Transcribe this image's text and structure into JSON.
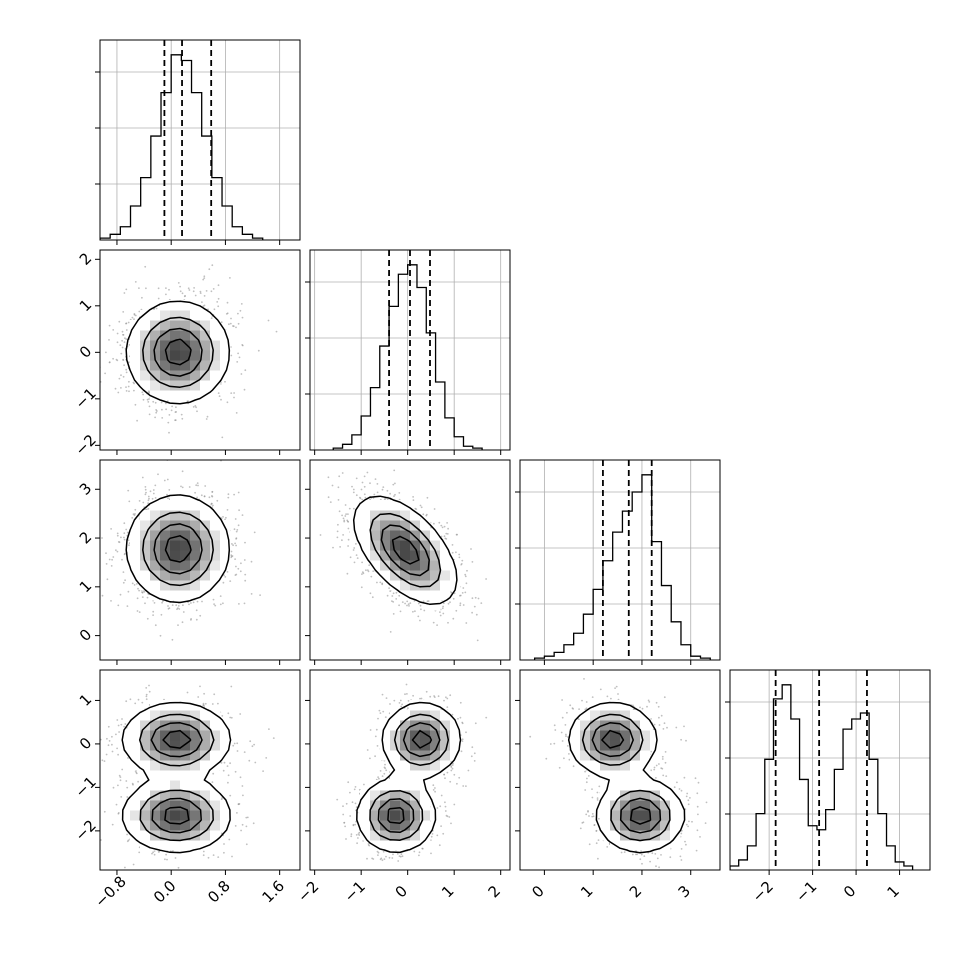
{
  "chart_data": {
    "type": "corner",
    "description_of_layout": "lower-triangular 4x4 matrix: 1-D histograms on the diagonal with dashed quantile lines, 2-D density/contour panels below",
    "grid": true,
    "parameters": [
      {
        "ticks": [
          -0.8,
          0.0,
          0.8,
          1.6
        ],
        "tick_labels": [
          "−0.8",
          "0.0",
          "0.8",
          "1.6"
        ],
        "range": [
          -1.05,
          1.9
        ],
        "quantiles": [
          -0.1,
          0.16,
          0.59
        ],
        "hist": {
          "edges": [
            -1.05,
            -0.9,
            -0.75,
            -0.6,
            -0.45,
            -0.3,
            -0.15,
            0.0,
            0.15,
            0.3,
            0.45,
            0.6,
            0.75,
            0.9,
            1.05,
            1.2,
            1.35
          ],
          "counts": [
            0.01,
            0.03,
            0.07,
            0.18,
            0.33,
            0.55,
            0.78,
            0.98,
            0.95,
            0.78,
            0.55,
            0.33,
            0.18,
            0.07,
            0.03,
            0.01
          ]
        }
      },
      {
        "ticks": [
          -2,
          -1,
          0,
          1,
          2
        ],
        "tick_labels": [
          "−2",
          "−1",
          "0",
          "1",
          "2"
        ],
        "range": [
          -2.1,
          2.2
        ],
        "quantiles": [
          -0.4,
          0.05,
          0.48
        ],
        "hist": {
          "edges": [
            -1.6,
            -1.4,
            -1.2,
            -1.0,
            -0.8,
            -0.6,
            -0.4,
            -0.2,
            0.0,
            0.2,
            0.4,
            0.6,
            0.8,
            1.0,
            1.2,
            1.4,
            1.6
          ],
          "counts": [
            0.01,
            0.03,
            0.08,
            0.18,
            0.33,
            0.55,
            0.76,
            0.93,
            0.98,
            0.86,
            0.62,
            0.36,
            0.17,
            0.07,
            0.02,
            0.01
          ]
        }
      },
      {
        "ticks": [
          0,
          1,
          2,
          3
        ],
        "tick_labels": [
          "0",
          "1",
          "2",
          "3"
        ],
        "range": [
          -0.5,
          3.6
        ],
        "quantiles": [
          1.2,
          1.73,
          2.2
        ],
        "hist": {
          "edges": [
            -0.2,
            0.0,
            0.2,
            0.4,
            0.6,
            0.8,
            1.0,
            1.2,
            1.4,
            1.6,
            1.8,
            2.0,
            2.2,
            2.4,
            2.6,
            2.8,
            3.0,
            3.2,
            3.4
          ],
          "counts": [
            0.01,
            0.02,
            0.04,
            0.08,
            0.14,
            0.24,
            0.37,
            0.52,
            0.67,
            0.78,
            0.88,
            0.97,
            0.62,
            0.39,
            0.2,
            0.08,
            0.02,
            0.01
          ]
        }
      },
      {
        "ticks": [
          -2,
          -1,
          0,
          1
        ],
        "tick_labels": [
          "−2",
          "−1",
          "0",
          "1"
        ],
        "range": [
          -2.9,
          1.7
        ],
        "quantiles": [
          -1.85,
          -0.85,
          0.25
        ],
        "hist": {
          "edges": [
            -2.9,
            -2.7,
            -2.5,
            -2.3,
            -2.1,
            -1.9,
            -1.7,
            -1.5,
            -1.3,
            -1.1,
            -0.9,
            -0.7,
            -0.5,
            -0.3,
            -0.1,
            0.1,
            0.3,
            0.5,
            0.7,
            0.9,
            1.1,
            1.3
          ],
          "counts": [
            0.02,
            0.05,
            0.12,
            0.28,
            0.55,
            0.85,
            0.92,
            0.75,
            0.45,
            0.22,
            0.2,
            0.3,
            0.5,
            0.7,
            0.75,
            0.78,
            0.55,
            0.28,
            0.12,
            0.04,
            0.02
          ]
        }
      }
    ],
    "pairs": [
      {
        "row": 1,
        "col": 0,
        "center": [
          0.1,
          0.0
        ],
        "sd": [
          0.38,
          0.55
        ],
        "corr": 0.0,
        "modes": 1
      },
      {
        "row": 2,
        "col": 0,
        "center": [
          0.1,
          1.78
        ],
        "sd": [
          0.38,
          0.55
        ],
        "corr": 0.0,
        "modes": 1
      },
      {
        "row": 2,
        "col": 1,
        "center": [
          -0.05,
          1.75
        ],
        "sd": [
          0.55,
          0.55
        ],
        "corr": -0.55,
        "modes": 1
      },
      {
        "row": 3,
        "col": 0,
        "modes": 2,
        "components": [
          [
            0.08,
            0.1
          ],
          [
            0.08,
            -1.65
          ]
        ],
        "sd": [
          0.4,
          0.42
        ]
      },
      {
        "row": 3,
        "col": 1,
        "modes": 2,
        "components": [
          [
            0.3,
            0.1
          ],
          [
            -0.25,
            -1.65
          ]
        ],
        "sd": [
          0.42,
          0.42
        ]
      },
      {
        "row": 3,
        "col": 2,
        "modes": 2,
        "components": [
          [
            1.4,
            0.1
          ],
          [
            1.97,
            -1.65
          ]
        ],
        "sd": [
          0.45,
          0.42
        ]
      }
    ]
  }
}
